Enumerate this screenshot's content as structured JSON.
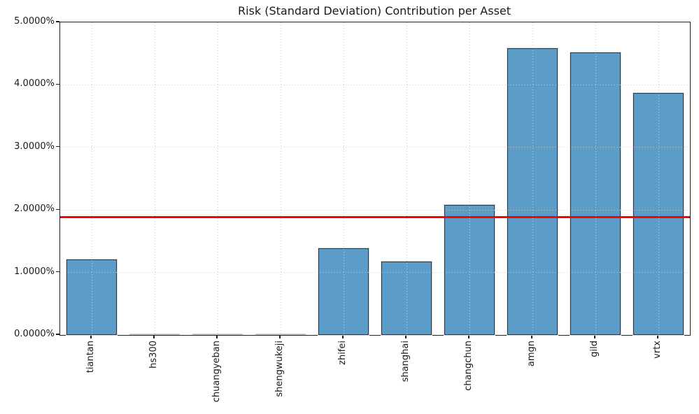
{
  "chart_data": {
    "type": "bar",
    "title": "Risk (Standard Deviation) Contribution per Asset",
    "categories": [
      "tiantan",
      "hs300",
      "chuangyeban",
      "shengwukeji",
      "zhifei",
      "shanghai",
      "changchun",
      "amgn",
      "gild",
      "vrtx"
    ],
    "values": [
      1.21,
      0.0,
      0.0,
      0.0,
      1.39,
      1.18,
      2.08,
      4.59,
      4.52,
      3.87
    ],
    "unit": "%",
    "xlabel": "",
    "ylabel": "",
    "ylim": [
      0,
      5
    ],
    "ytick_labels": [
      "0.0000%",
      "1.0000%",
      "2.0000%",
      "3.0000%",
      "4.0000%",
      "5.0000%"
    ],
    "grid": true,
    "legend": "none",
    "mean_line_value": 1.884,
    "colors": {
      "bar_fill": "#5c9cc9",
      "bar_edge": "#2e3c47",
      "zero_bar": "#c9c9c9",
      "mean_line": "#ff0000",
      "grid_line": "#c9c9c9",
      "spine": "#1f1f1f",
      "text": "#1a1a1a"
    }
  }
}
